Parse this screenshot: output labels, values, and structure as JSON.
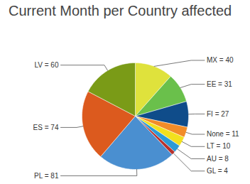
{
  "chart_data": {
    "type": "pie",
    "title": "Current Month per Country affected",
    "categories": [
      "MX",
      "EE",
      "FI",
      "None",
      "LT",
      "AU",
      "GL",
      "PL",
      "ES",
      "LV"
    ],
    "values": [
      40,
      31,
      27,
      11,
      10,
      8,
      4,
      81,
      74,
      60
    ],
    "value_labels": [
      "MX = 40",
      "EE = 31",
      "FI = 27",
      "None = 11",
      "LT = 10",
      "AU = 8",
      "GL = 4",
      "PL = 81",
      "ES = 74",
      "LV = 60"
    ],
    "colors": [
      "#dfe23c",
      "#6ac04b",
      "#0f4c8a",
      "#f28c28",
      "#f2e01e",
      "#2b9ad6",
      "#b7312c",
      "#4a8fd0",
      "#dc5a1e",
      "#7a9b17"
    ],
    "data_labels": true
  }
}
